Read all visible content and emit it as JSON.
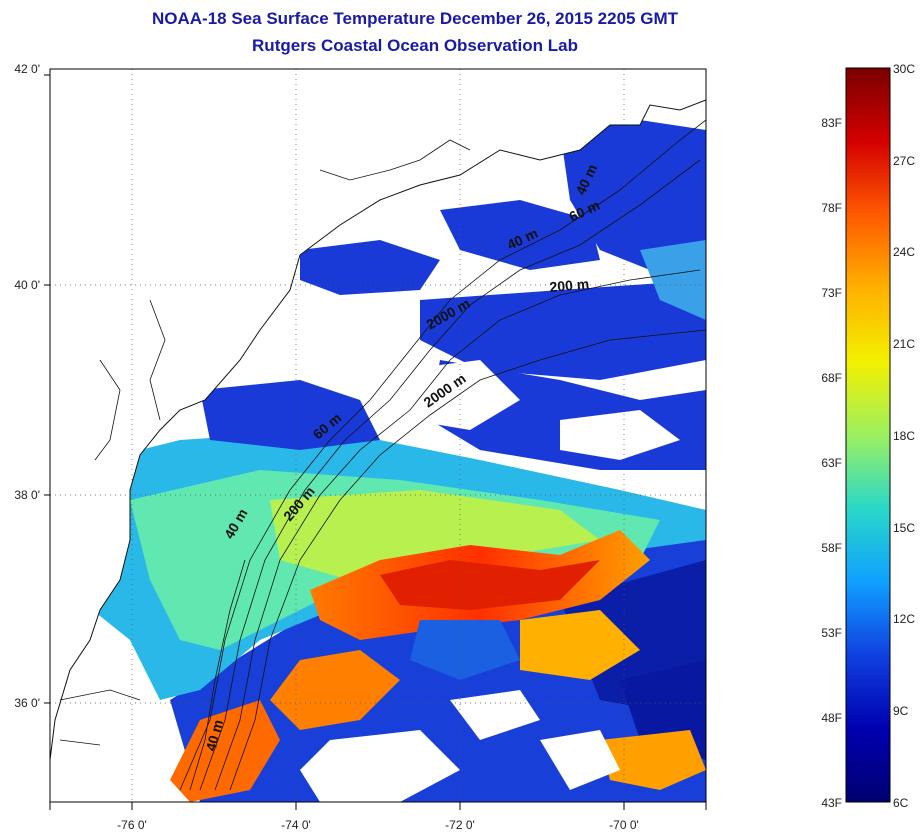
{
  "title_line1": "NOAA-18 Sea Surface Temperature December 26, 2015 2205 GMT",
  "title_line2": "Rutgers Coastal Ocean Observation Lab",
  "map": {
    "lat_labels": [
      "42 0'",
      "40 0'",
      "38 0'",
      "36 0'"
    ],
    "lon_labels": [
      "-76 0'",
      "-74 0'",
      "-72 0'",
      "-70 0'"
    ],
    "grid": true,
    "contour_labels": [
      "40 m",
      "60 m",
      "40 m",
      "200 m",
      "2000 m",
      "2000 m",
      "60 m",
      "200 m",
      "40 m",
      "40 m"
    ]
  },
  "colorbar": {
    "fahrenheit_labels": [
      "83F",
      "78F",
      "73F",
      "68F",
      "63F",
      "58F",
      "53F",
      "48F",
      "43F"
    ],
    "celsius_labels": [
      "30C",
      "27C",
      "24C",
      "21C",
      "18C",
      "15C",
      "12C",
      "9C",
      "6C"
    ],
    "colors": [
      "#7a0000",
      "#d40000",
      "#ff5a00",
      "#ffb000",
      "#f4f000",
      "#9cf060",
      "#2ad8c8",
      "#10a0ff",
      "#1040e0",
      "#0000b0",
      "#000070"
    ]
  }
}
